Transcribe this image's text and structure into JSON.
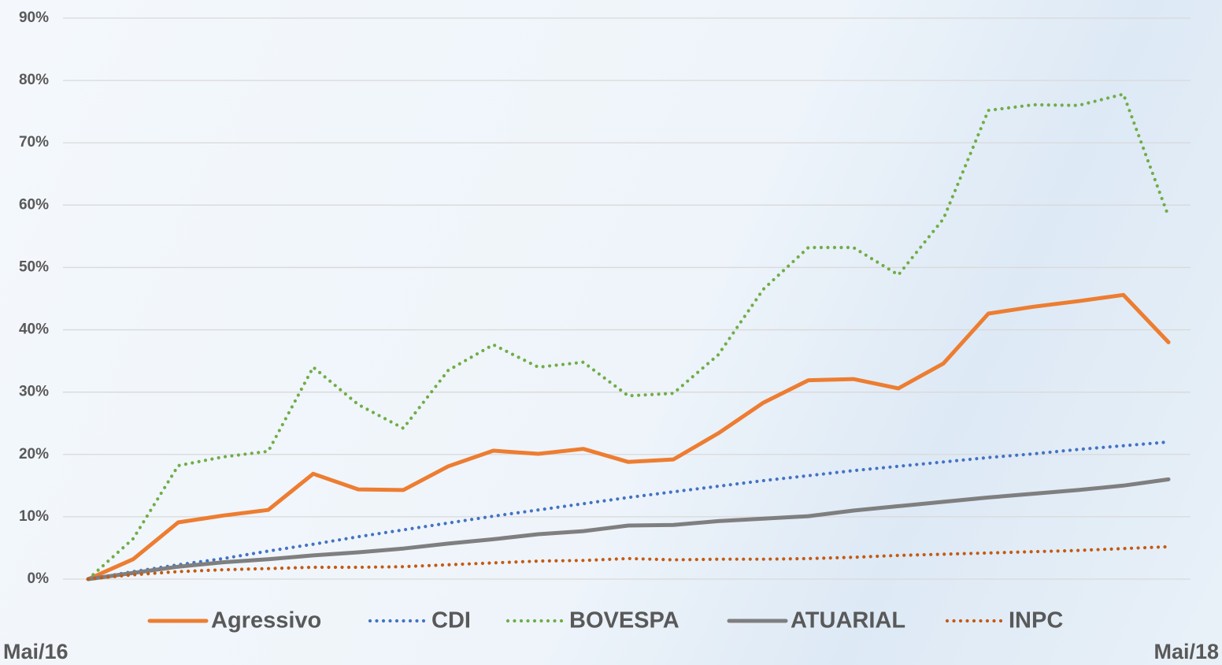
{
  "chart_data": {
    "type": "line",
    "categories": [
      "Mai/16",
      null,
      null,
      null,
      null,
      null,
      null,
      null,
      null,
      null,
      null,
      null,
      null,
      null,
      null,
      null,
      null,
      null,
      null,
      null,
      null,
      null,
      null,
      null,
      "Mai/18"
    ],
    "series": [
      {
        "name": "Agressivo",
        "color": "#ed7d31",
        "style": "solid",
        "values": [
          0,
          3.2,
          9.1,
          10.2,
          11.1,
          16.9,
          14.4,
          14.3,
          18.1,
          20.6,
          20.1,
          20.9,
          18.8,
          19.2,
          23.4,
          28.3,
          31.9,
          32.1,
          30.6,
          34.6,
          42.6,
          43.7,
          44.6,
          45.6,
          38.0
        ]
      },
      {
        "name": "CDI",
        "color": "#4472c4",
        "style": "dotted",
        "values": [
          0,
          1.2,
          2.3,
          3.3,
          4.5,
          5.6,
          6.8,
          7.9,
          9.0,
          10.1,
          11.1,
          12.1,
          13.1,
          14.0,
          14.9,
          15.8,
          16.6,
          17.4,
          18.1,
          18.8,
          19.5,
          20.1,
          20.8,
          21.4,
          22.0
        ]
      },
      {
        "name": "BOVESPA",
        "color": "#70ad47",
        "style": "dotted",
        "values": [
          0,
          6.5,
          18.2,
          19.6,
          20.5,
          34.0,
          28.0,
          24.2,
          33.5,
          37.6,
          34.0,
          34.8,
          29.4,
          29.8,
          36.0,
          46.5,
          53.2,
          53.2,
          48.8,
          57.8,
          75.2,
          76.1,
          76.0,
          77.8,
          58.2
        ]
      },
      {
        "name": "ATUARIAL",
        "color": "#7f7f7f",
        "style": "solid",
        "values": [
          0,
          1.0,
          2.0,
          2.7,
          3.2,
          3.8,
          4.3,
          4.9,
          5.7,
          6.4,
          7.2,
          7.7,
          8.6,
          8.7,
          9.3,
          9.7,
          10.1,
          11.0,
          11.7,
          12.4,
          13.1,
          13.7,
          14.3,
          15.0,
          16.0
        ]
      },
      {
        "name": "INPC",
        "color": "#c55a11",
        "style": "dotted",
        "values": [
          0,
          0.7,
          1.2,
          1.5,
          1.7,
          1.9,
          1.9,
          2.0,
          2.3,
          2.6,
          2.9,
          3.0,
          3.3,
          3.1,
          3.2,
          3.2,
          3.3,
          3.5,
          3.8,
          4.0,
          4.2,
          4.4,
          4.6,
          4.9,
          5.2
        ]
      }
    ],
    "ylim": [
      0,
      90
    ],
    "yticks": [
      {
        "value": 0,
        "label": "0%"
      },
      {
        "value": 10,
        "label": "10%"
      },
      {
        "value": 20,
        "label": "20%"
      },
      {
        "value": 30,
        "label": "30%"
      },
      {
        "value": 40,
        "label": "40%"
      },
      {
        "value": 50,
        "label": "50%"
      },
      {
        "value": 60,
        "label": "60%"
      },
      {
        "value": 70,
        "label": "70%"
      },
      {
        "value": 80,
        "label": "80%"
      },
      {
        "value": 90,
        "label": "90%"
      }
    ],
    "grid": true,
    "legend": "bottom"
  }
}
